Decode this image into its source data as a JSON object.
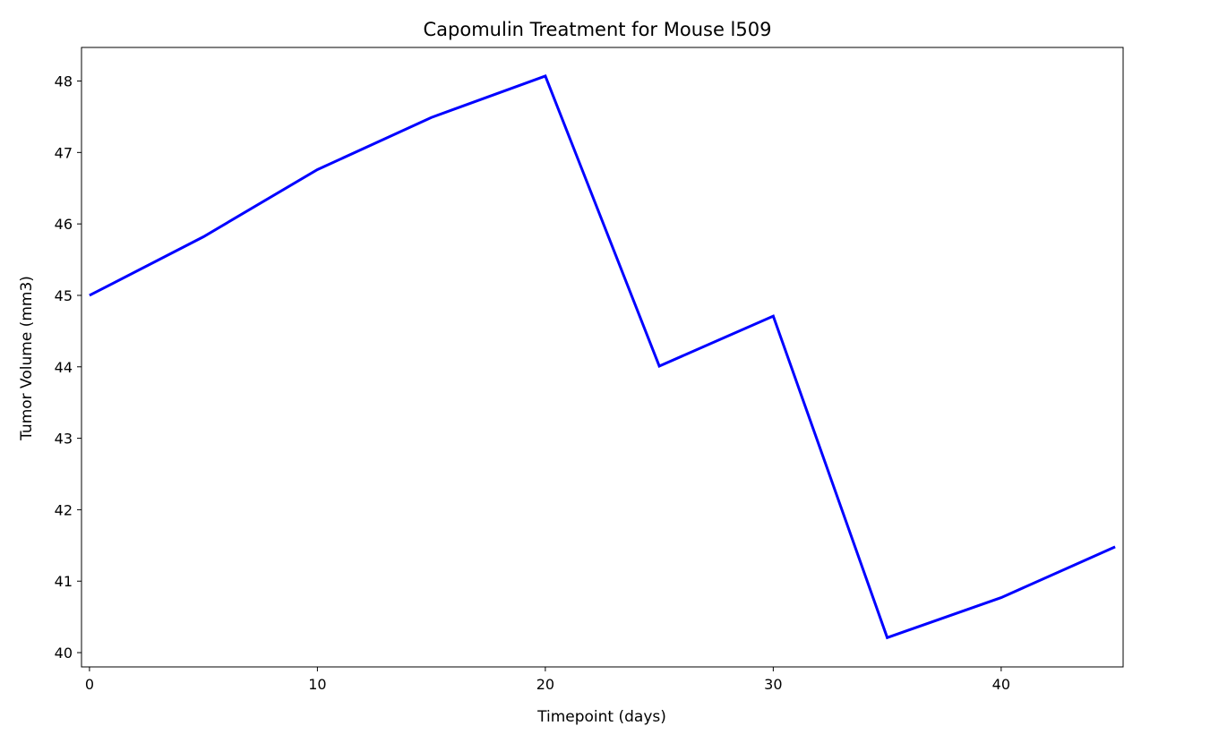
{
  "chart_data": {
    "type": "line",
    "title": "Capomulin Treatment for Mouse l509",
    "xlabel": "Timepoint (days)",
    "ylabel": "Tumor Volume (mm3)",
    "xlim": [
      -0.35,
      45.35
    ],
    "ylim": [
      39.8,
      48.47
    ],
    "xticks": [
      0,
      10,
      20,
      30,
      40
    ],
    "yticks": [
      40,
      41,
      42,
      43,
      44,
      45,
      46,
      47,
      48
    ],
    "grid": false,
    "series": [
      {
        "color": "#0000ff",
        "x": [
          0,
          5,
          10,
          15,
          20,
          25,
          30,
          35,
          40,
          45
        ],
        "y": [
          45.0,
          45.82,
          46.76,
          47.49,
          48.07,
          44.01,
          44.71,
          40.21,
          40.77,
          41.48
        ]
      }
    ]
  }
}
